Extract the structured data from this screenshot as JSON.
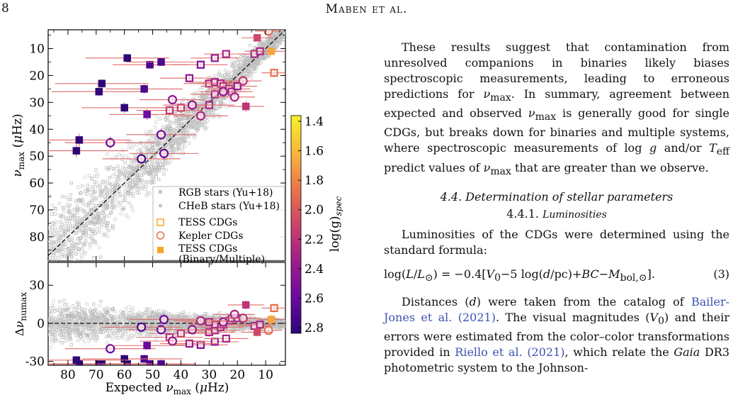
{
  "header": {
    "page_number": "8",
    "running_head": "Maben et al."
  },
  "figure": {
    "top_panel": {
      "ylabel": "ν_max (μHz)",
      "yticks": [
        "10",
        "20",
        "30",
        "40",
        "50",
        "60",
        "70",
        "80"
      ],
      "legend": {
        "items": [
          {
            "label": "RGB stars (Yu+18)",
            "marker": "small-square-grey"
          },
          {
            "label": "CHeB stars (Yu+18)",
            "marker": "small-circle-grey"
          },
          {
            "label": "TESS CDGs",
            "marker": "open-square-orange"
          },
          {
            "label": "Kepler CDGs",
            "marker": "open-circle-orange"
          },
          {
            "label": "TESS CDGs",
            "label2": "(Binary/Multiple)",
            "marker": "filled-square-orange"
          }
        ]
      }
    },
    "bottom_panel": {
      "ylabel": "Δν_numax",
      "yticks": [
        "30",
        "0",
        "-30"
      ],
      "xlabel": "Expected ν_max (μHz)",
      "xticks": [
        "80",
        "70",
        "60",
        "50",
        "40",
        "30",
        "20",
        "10"
      ]
    },
    "colorbar": {
      "label": "log(g)_spec",
      "ticks": [
        "1.4",
        "1.6",
        "1.8",
        "2.0",
        "2.2",
        "2.4",
        "2.6",
        "2.8"
      ],
      "colors": [
        "#f7f22a",
        "#f8b23c",
        "#e8704b",
        "#c83e6e",
        "#9a1c8c",
        "#6a0aa0",
        "#2d0777"
      ]
    }
  },
  "chart_data": {
    "type": "scatter",
    "xlabel": "Expected ν_max (μHz)",
    "ylabel": "ν_max (μHz)",
    "xlim": [
      87,
      3
    ],
    "ylim": [
      89,
      3
    ],
    "residual_ylabel": "Δν_numax",
    "residual_ylim": [
      -33,
      48
    ],
    "colorbar": {
      "label": "log(g)_spec",
      "range": [
        1.4,
        2.8
      ]
    },
    "series": [
      {
        "name": "TESS CDGs",
        "marker": "open-square",
        "points": [
          {
            "x": 33,
            "y": 16,
            "logg": 2.5
          },
          {
            "x": 28,
            "y": 13.5,
            "logg": 2.4
          },
          {
            "x": 24,
            "y": 12,
            "logg": 2.3
          },
          {
            "x": 14,
            "y": 12,
            "logg": 2.3
          },
          {
            "x": 12,
            "y": 11,
            "logg": 2.3
          },
          {
            "x": 7,
            "y": 19,
            "logg": 1.9
          },
          {
            "x": 37,
            "y": 21,
            "logg": 2.4
          },
          {
            "x": 30,
            "y": 23,
            "logg": 2.3
          },
          {
            "x": 28,
            "y": 22.5,
            "logg": 2.3
          },
          {
            "x": 26,
            "y": 23,
            "logg": 2.3
          },
          {
            "x": 25,
            "y": 24,
            "logg": 2.2
          },
          {
            "x": 23,
            "y": 25,
            "logg": 2.3
          },
          {
            "x": 22,
            "y": 26,
            "logg": 2.3
          },
          {
            "x": 28,
            "y": 27,
            "logg": 2.3
          },
          {
            "x": 40,
            "y": 32,
            "logg": 2.2
          },
          {
            "x": 44,
            "y": 33,
            "logg": 2.2
          },
          {
            "x": 30,
            "y": 31,
            "logg": 2.3
          },
          {
            "x": 20,
            "y": 24,
            "logg": 2.4
          }
        ]
      },
      {
        "name": "Kepler CDGs",
        "marker": "open-circle",
        "points": [
          {
            "x": 9,
            "y": 3.5,
            "logg": 1.9
          },
          {
            "x": 43,
            "y": 29,
            "logg": 2.4
          },
          {
            "x": 36,
            "y": 31,
            "logg": 2.4
          },
          {
            "x": 25,
            "y": 26,
            "logg": 2.4
          },
          {
            "x": 21,
            "y": 28,
            "logg": 2.3
          },
          {
            "x": 33,
            "y": 35,
            "logg": 2.3
          },
          {
            "x": 47,
            "y": 42,
            "logg": 2.6
          },
          {
            "x": 65,
            "y": 45,
            "logg": 2.6
          },
          {
            "x": 54,
            "y": 51,
            "logg": 2.7
          },
          {
            "x": 46,
            "y": 49,
            "logg": 2.6
          },
          {
            "x": 18,
            "y": 22,
            "logg": 2.2
          }
        ]
      },
      {
        "name": "TESS CDGs (Binary/Multiple)",
        "marker": "filled-square",
        "points": [
          {
            "x": 8,
            "y": 11,
            "logg": 1.7
          },
          {
            "x": 13,
            "y": 6,
            "logg": 2.1
          },
          {
            "x": 59,
            "y": 13.5,
            "logg": 2.8
          },
          {
            "x": 51,
            "y": 16,
            "logg": 2.7
          },
          {
            "x": 47,
            "y": 15,
            "logg": 2.7
          },
          {
            "x": 68,
            "y": 23,
            "logg": 2.8
          },
          {
            "x": 69,
            "y": 26,
            "logg": 2.8
          },
          {
            "x": 53,
            "y": 25,
            "logg": 2.7
          },
          {
            "x": 60,
            "y": 32,
            "logg": 2.8
          },
          {
            "x": 52,
            "y": 34.5,
            "logg": 2.6
          },
          {
            "x": 76,
            "y": 44,
            "logg": 2.8
          },
          {
            "x": 77,
            "y": 48,
            "logg": 2.8
          },
          {
            "x": 17,
            "y": 31.5,
            "logg": 2.2
          }
        ]
      }
    ],
    "one_to_one_line": true
  },
  "body": {
    "p1_a": "These results suggest that contamination from unresolved companions in binaries likely biases spectroscopic measurements, leading to erroneous predictions for ",
    "p1_numax1": "ν",
    "p1_numax1_sub": "max",
    "p1_b": ". In summary, agreement between expected and observed ",
    "p1_c": " is generally good for single CDGs, but breaks down for binaries and multiple systems, where spectroscopic measurements of log ",
    "p1_g": "g",
    "p1_d": " and/or ",
    "p1_teff": "T",
    "p1_teff_sub": "eff",
    "p1_e": " predict values of ",
    "p1_f": " that are greater than we observe.",
    "section": "4.4. Determination of stellar parameters",
    "subsection_num": "4.4.1.",
    "subsection_title": "Luminosities",
    "p2": "Luminosities of the CDGs were determined using the standard formula:",
    "equation": "log(L/L⊙) = −0.4[V₀−5 log(d/pc)+BC−M_bol,⊙].",
    "equation_number": "(3)",
    "p3_a": "Distances (",
    "p3_d": "d",
    "p3_b": ") were taken from the catalog of ",
    "cite1": "Bailer-Jones et al.",
    "cite1_year": "(2021)",
    "p3_c": ". The visual magnitudes (",
    "p3_v0": "V",
    "p3_v0_sub": "0",
    "p3_e": ") and their errors were estimated from the color–color transformations provided in ",
    "cite2": "Riello et al.",
    "cite2_year": "(2021)",
    "p3_f": ", which relate the ",
    "p3_gaia": "Gaia",
    "p3_g": " DR3 photometric system to the Johnson-"
  }
}
